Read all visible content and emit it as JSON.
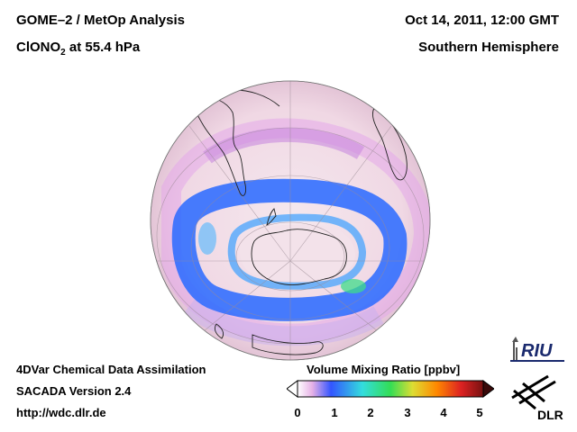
{
  "header": {
    "title_main": "GOME–2 / MetOp Analysis",
    "species_prefix": "ClONO",
    "species_sub": "2",
    "species_suffix": " at 55.4 hPa",
    "datetime": "Oct 14, 2011, 12:00 GMT",
    "hemisphere": "Southern Hemisphere"
  },
  "footer": {
    "line1": "4DVar Chemical Data Assimilation",
    "line2": "SACADA Version 2.4",
    "line3": "http://wdc.dlr.de"
  },
  "colorbar": {
    "title": "Volume Mixing Ratio [ppbv]",
    "ticks": [
      "0",
      "1",
      "2",
      "3",
      "4",
      "5"
    ],
    "colors": [
      "#ffffff",
      "#e6b0e6",
      "#3355ff",
      "#33dddd",
      "#33dd55",
      "#dddd33",
      "#ff8800",
      "#dd2222",
      "#771111"
    ]
  },
  "logos": {
    "riu": "RIU",
    "dlr": "DLR"
  },
  "map": {
    "projection": "orthographic",
    "center": "South Pole",
    "background_color": "#f2dde6",
    "vortex_color": "#2f6bff"
  }
}
